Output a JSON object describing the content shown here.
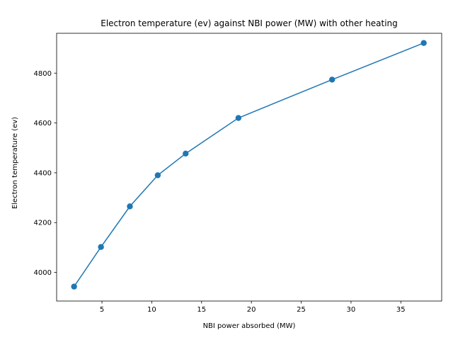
{
  "chart_data": {
    "type": "line",
    "title": "Electron temperature (ev) against NBI power (MW) with other heating",
    "xlabel": "NBI power absorbed (MW)",
    "ylabel": "Electron temperature (ev)",
    "xlim": [
      0.45,
      39.1
    ],
    "ylim": [
      3885,
      4960
    ],
    "xticks": [
      5,
      10,
      15,
      20,
      25,
      30,
      35
    ],
    "yticks": [
      4000,
      4200,
      4400,
      4600,
      4800
    ],
    "grid": false,
    "color": "#1f77b4",
    "marker": "circle",
    "series": [
      {
        "x": [
          2.2,
          4.9,
          7.8,
          10.6,
          13.4,
          18.7,
          28.1,
          37.3
        ],
        "y": [
          3943,
          4102,
          4265,
          4390,
          4477,
          4620,
          4774,
          4921
        ]
      }
    ]
  }
}
